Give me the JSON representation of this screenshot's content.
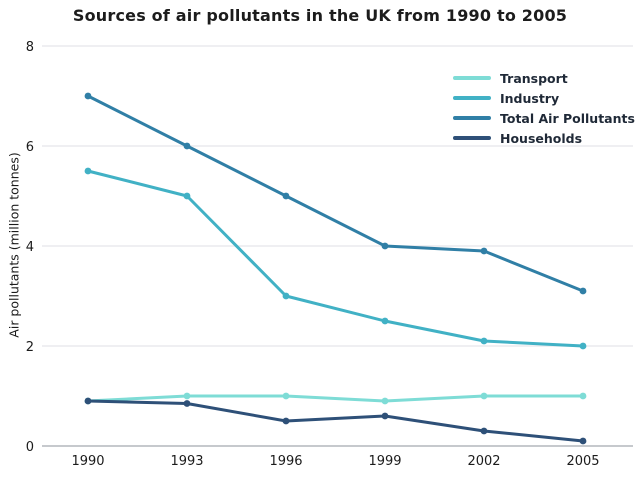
{
  "chart_data": {
    "type": "line",
    "title": "Sources of air pollutants in the UK from 1990 to 2005",
    "xlabel": "",
    "ylabel": "Air pollutants (million tonnes)",
    "categories": [
      "1990",
      "1993",
      "1996",
      "1999",
      "2002",
      "2005"
    ],
    "yticks": [
      0,
      2,
      4,
      6,
      8
    ],
    "ylim": [
      0,
      8
    ],
    "grid": "horizontal",
    "legend_position": "top-right",
    "series": [
      {
        "name": "Transport",
        "color": "#7EDCD6",
        "values": [
          0.9,
          1.0,
          1.0,
          0.9,
          1.0,
          1.0
        ]
      },
      {
        "name": "Industry",
        "color": "#41B1C5",
        "values": [
          5.5,
          5.0,
          3.0,
          2.5,
          2.1,
          2.0
        ]
      },
      {
        "name": "Total Air Pollutants",
        "color": "#307FA6",
        "values": [
          7.0,
          6.0,
          5.0,
          4.0,
          3.9,
          3.1
        ]
      },
      {
        "name": "Households",
        "color": "#2E5078",
        "values": [
          0.9,
          0.85,
          0.5,
          0.6,
          0.3,
          0.1
        ]
      }
    ],
    "colors": {
      "grid_line": "#EAEAEE",
      "zero_line": "#C6C9CD",
      "text": "#1B1B1B"
    }
  }
}
